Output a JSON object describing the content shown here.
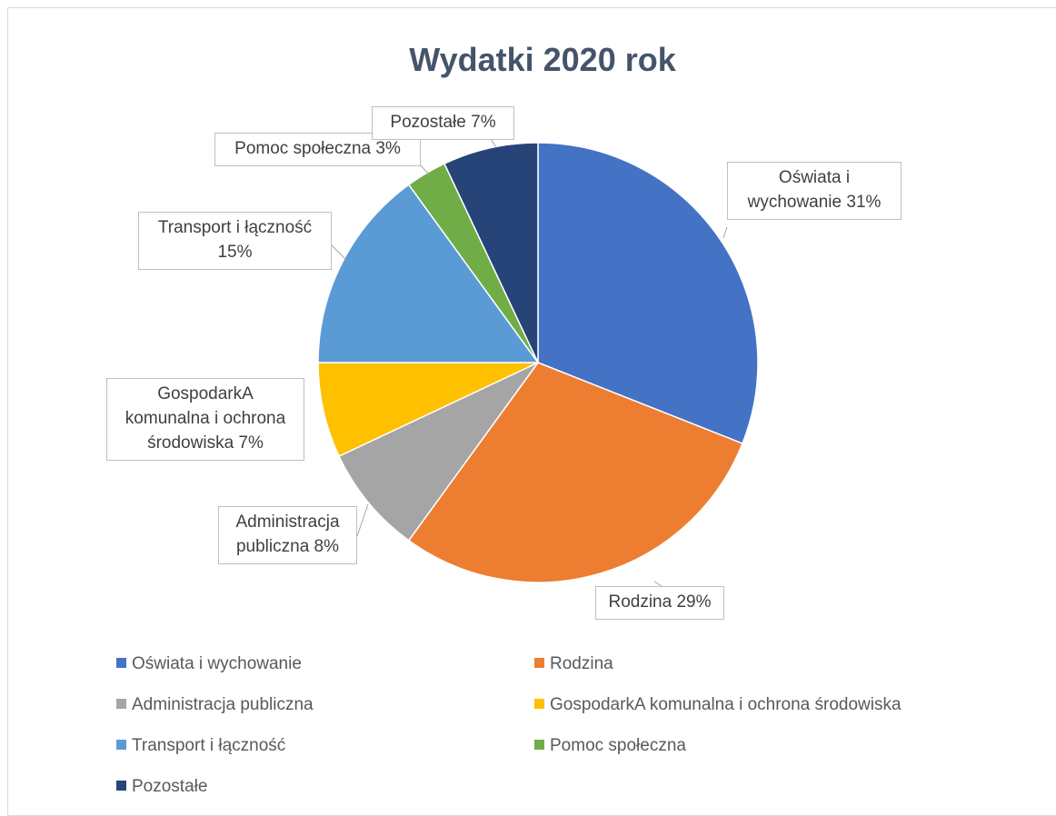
{
  "chart_data": {
    "type": "pie",
    "title": "Wydatki 2020 rok",
    "categories": [
      "Oświata i wychowanie",
      "Rodzina",
      "Administracja publiczna",
      "GospodarkA komunalna i ochrona środowiska",
      "Transport i łączność",
      "Pomoc społeczna",
      "Pozostałe"
    ],
    "values": [
      31,
      29,
      8,
      7,
      15,
      3,
      7
    ],
    "value_labels": [
      "31%",
      "29%",
      "8%",
      "7%",
      "15%",
      "3%",
      "7%"
    ],
    "colors": [
      "#4472c4",
      "#ed7d31",
      "#a5a5a5",
      "#ffc000",
      "#5b9bd5",
      "#70ad47",
      "#264478"
    ],
    "legend": "bottom"
  }
}
